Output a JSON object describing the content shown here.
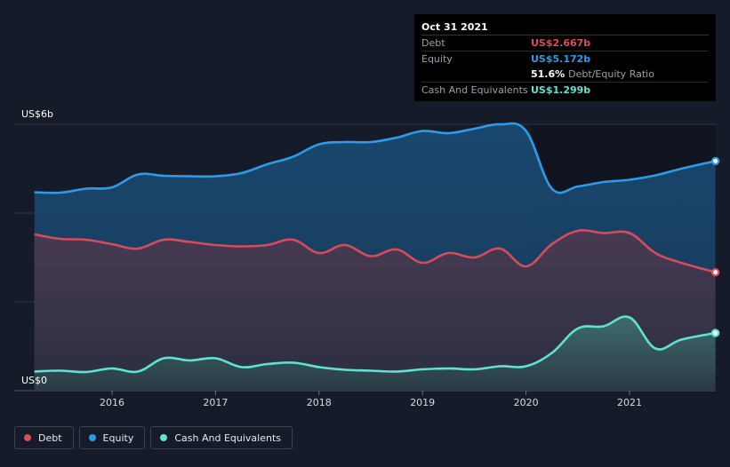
{
  "colors": {
    "debt": "#e04b5a",
    "equity": "#2f9ae6",
    "cash": "#5fe3d0",
    "background": "#151b28",
    "tooltip_bg": "#000000"
  },
  "tooltip": {
    "date": "Oct 31 2021",
    "debt_label": "Debt",
    "debt_value": "US$2.667b",
    "equity_label": "Equity",
    "equity_value": "US$5.172b",
    "ratio_value": "51.6%",
    "ratio_label": "Debt/Equity Ratio",
    "cash_label": "Cash And Equivalents",
    "cash_value": "US$1.299b"
  },
  "legend": {
    "debt": "Debt",
    "equity": "Equity",
    "cash": "Cash And Equivalents"
  },
  "chart_data": {
    "type": "area",
    "y_unit_labels": {
      "top": "US$6b",
      "bottom": "US$0"
    },
    "ylim": [
      0,
      6
    ],
    "xlim": [
      2015.25,
      2021.83
    ],
    "x_ticks": [
      2016,
      2017,
      2018,
      2019,
      2020,
      2021
    ],
    "x_tick_labels": [
      "2016",
      "2017",
      "2018",
      "2019",
      "2020",
      "2021"
    ],
    "grid": true,
    "legend_position": "bottom-left",
    "x": [
      2015.25,
      2015.5,
      2015.75,
      2016.0,
      2016.25,
      2016.5,
      2016.75,
      2017.0,
      2017.25,
      2017.5,
      2017.75,
      2018.0,
      2018.25,
      2018.5,
      2018.75,
      2019.0,
      2019.25,
      2019.5,
      2019.75,
      2020.0,
      2020.25,
      2020.5,
      2020.75,
      2021.0,
      2021.25,
      2021.5,
      2021.83
    ],
    "series": [
      {
        "name": "Equity",
        "values": [
          4.47,
          4.46,
          4.55,
          4.58,
          4.87,
          4.84,
          4.83,
          4.83,
          4.9,
          5.1,
          5.27,
          5.55,
          5.6,
          5.6,
          5.7,
          5.85,
          5.8,
          5.9,
          6.0,
          5.85,
          4.55,
          4.6,
          4.7,
          4.75,
          4.85,
          5.0,
          5.172
        ]
      },
      {
        "name": "Debt",
        "values": [
          3.52,
          3.42,
          3.4,
          3.3,
          3.2,
          3.4,
          3.35,
          3.28,
          3.25,
          3.28,
          3.4,
          3.1,
          3.28,
          3.03,
          3.18,
          2.88,
          3.1,
          3.0,
          3.2,
          2.8,
          3.3,
          3.6,
          3.55,
          3.55,
          3.1,
          2.88,
          2.667
        ]
      },
      {
        "name": "Cash And Equivalents",
        "values": [
          0.43,
          0.45,
          0.42,
          0.5,
          0.43,
          0.73,
          0.68,
          0.73,
          0.53,
          0.6,
          0.63,
          0.53,
          0.47,
          0.45,
          0.43,
          0.48,
          0.5,
          0.48,
          0.55,
          0.55,
          0.85,
          1.4,
          1.45,
          1.65,
          0.95,
          1.15,
          1.299
        ]
      }
    ]
  }
}
